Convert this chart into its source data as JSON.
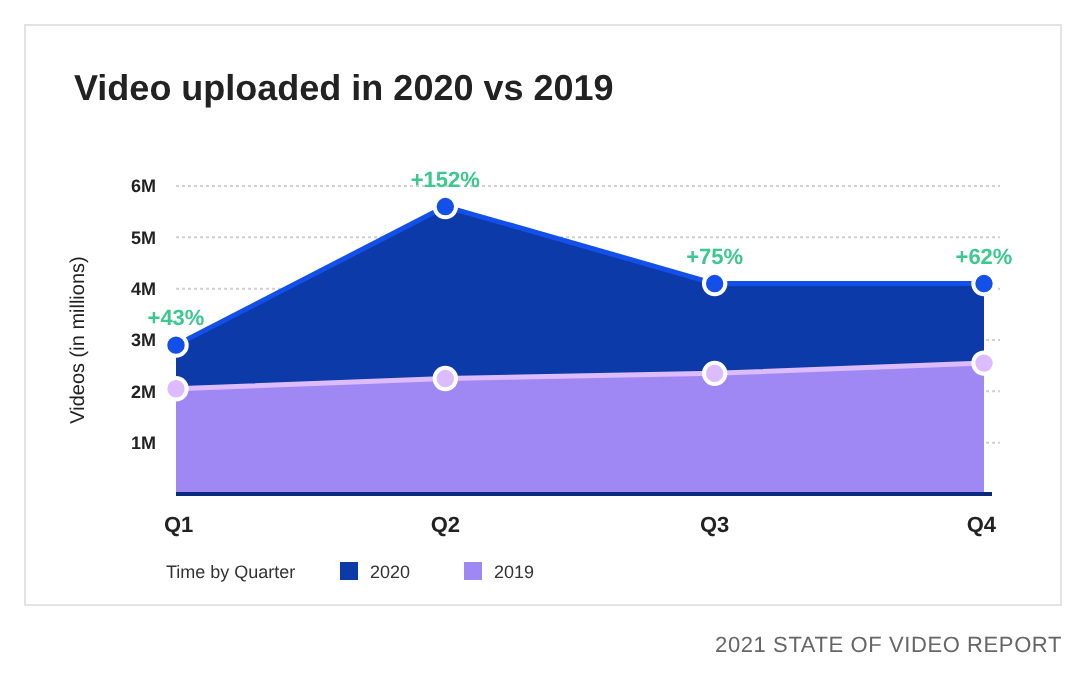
{
  "chart_data": {
    "type": "area",
    "title": "Video uploaded in 2020 vs 2019",
    "xlabel": "Time by Quarter",
    "ylabel": "Videos (in millions)",
    "categories": [
      "Q1",
      "Q2",
      "Q3",
      "Q4"
    ],
    "series": [
      {
        "name": "2020",
        "color": "#0d3aa9",
        "values": [
          2.9,
          5.6,
          4.1,
          4.1
        ]
      },
      {
        "name": "2019",
        "color": "#a088f4",
        "values": [
          2.05,
          2.25,
          2.35,
          2.55
        ]
      }
    ],
    "ylim": [
      0,
      6
    ],
    "yticks": [
      {
        "value": 1,
        "label": "1M"
      },
      {
        "value": 2,
        "label": "2M"
      },
      {
        "value": 3,
        "label": "3M"
      },
      {
        "value": 4,
        "label": "4M"
      },
      {
        "value": 5,
        "label": "5M"
      },
      {
        "value": 6,
        "label": "6M"
      }
    ],
    "grid": "y",
    "legend": "bottom",
    "marker": "circle",
    "annotations": [
      {
        "text": "+43%",
        "x": "Q1",
        "y": 2.9
      },
      {
        "text": "+152%",
        "x": "Q2",
        "y": 5.6
      },
      {
        "text": "+75%",
        "x": "Q3",
        "y": 4.1
      },
      {
        "text": "+62%",
        "x": "Q4",
        "y": 4.1
      },
      "2021 STATE OF VIDEO REPORT"
    ]
  }
}
